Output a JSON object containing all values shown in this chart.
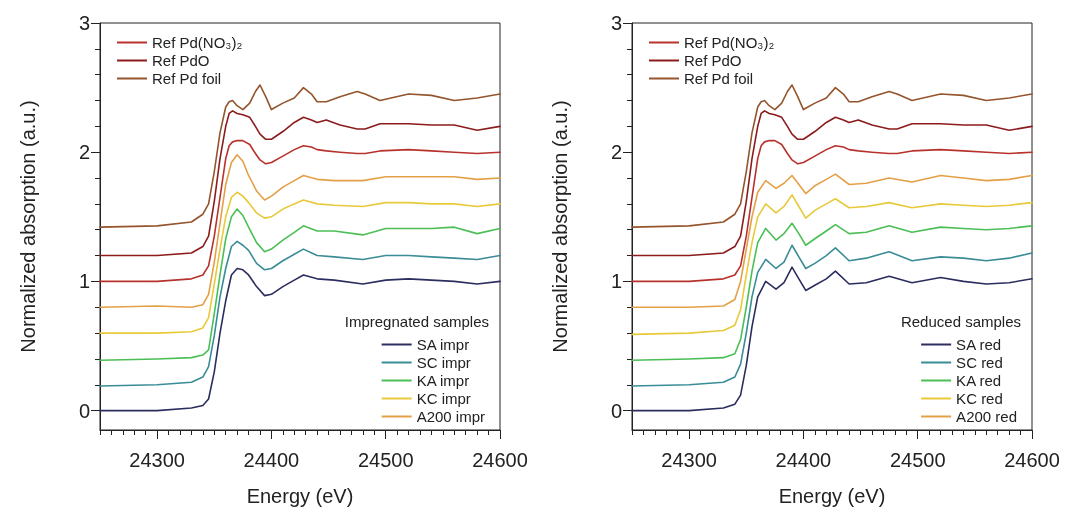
{
  "chart_data": [
    {
      "type": "line",
      "xlabel": "Energy (eV)",
      "ylabel": "Normalized absorption (a.u.)",
      "legend_title": "Impregnated samples",
      "legend": "bottom right",
      "grid": false,
      "marker": "none",
      "line_style": "solid",
      "xlim": [
        24250,
        24600
      ],
      "ylim": [
        -0.15,
        3
      ],
      "xticks": [
        {
          "value": 24250,
          "label": null
        },
        {
          "value": 24260,
          "label": null
        },
        {
          "value": 24270,
          "label": null
        },
        {
          "value": 24280,
          "label": null
        },
        {
          "value": 24290,
          "label": null
        },
        24300,
        {
          "value": 24310,
          "label": null
        },
        {
          "value": 24320,
          "label": null
        },
        {
          "value": 24330,
          "label": null
        },
        {
          "value": 24340,
          "label": null
        },
        {
          "value": 24350,
          "label": null
        },
        {
          "value": 24360,
          "label": null
        },
        {
          "value": 24370,
          "label": null
        },
        {
          "value": 24380,
          "label": null
        },
        {
          "value": 24390,
          "label": null
        },
        24400,
        {
          "value": 24410,
          "label": null
        },
        {
          "value": 24420,
          "label": null
        },
        {
          "value": 24430,
          "label": null
        },
        {
          "value": 24440,
          "label": null
        },
        {
          "value": 24450,
          "label": null
        },
        {
          "value": 24460,
          "label": null
        },
        {
          "value": 24470,
          "label": null
        },
        {
          "value": 24480,
          "label": null
        },
        {
          "value": 24490,
          "label": null
        },
        24500,
        {
          "value": 24510,
          "label": null
        },
        {
          "value": 24520,
          "label": null
        },
        {
          "value": 24530,
          "label": null
        },
        {
          "value": 24540,
          "label": null
        },
        {
          "value": 24550,
          "label": null
        },
        {
          "value": 24560,
          "label": null
        },
        {
          "value": 24570,
          "label": null
        },
        {
          "value": 24580,
          "label": null
        },
        {
          "value": 24590,
          "label": null
        },
        24600
      ],
      "yticks": [
        0,
        {
          "value": 0.2,
          "label": null
        },
        {
          "value": 0.4,
          "label": null
        },
        {
          "value": 0.6,
          "label": null
        },
        {
          "value": 0.8,
          "label": null
        },
        1,
        {
          "value": 1.2,
          "label": null
        },
        {
          "value": 1.4,
          "label": null
        },
        {
          "value": 1.6,
          "label": null
        },
        {
          "value": 1.8,
          "label": null
        },
        2,
        {
          "value": 2.2,
          "label": null
        },
        {
          "value": 2.4,
          "label": null
        },
        {
          "value": 2.6,
          "label": null
        },
        {
          "value": 2.8,
          "label": null
        },
        3
      ],
      "series": [
        {
          "name": "SA impr",
          "color": "#2b2d5e",
          "x": [
            24250,
            24300,
            24330,
            24340,
            24345,
            24350,
            24355,
            24360,
            24365,
            24370,
            24375,
            24380,
            24387,
            24394,
            24400,
            24410,
            24420,
            24428,
            24440,
            24455,
            24480,
            24500,
            24520,
            24540,
            24560,
            24580,
            24600
          ],
          "values": [
            0,
            0,
            0.02,
            0.04,
            0.09,
            0.3,
            0.6,
            0.85,
            1.05,
            1.1,
            1.09,
            1.05,
            0.96,
            0.89,
            0.9,
            0.96,
            1.01,
            1.05,
            1.02,
            1.01,
            0.98,
            1.01,
            1.02,
            1.01,
            1.0,
            0.98,
            1.0
          ]
        },
        {
          "name": "SC impr",
          "color": "#3a8c96",
          "x": [
            24250,
            24300,
            24330,
            24340,
            24345,
            24350,
            24355,
            24360,
            24365,
            24370,
            24375,
            24380,
            24387,
            24394,
            24400,
            24410,
            24420,
            24428,
            24440,
            24455,
            24480,
            24500,
            24520,
            24540,
            24560,
            24580,
            24600
          ],
          "values": [
            0.19,
            0.2,
            0.22,
            0.26,
            0.34,
            0.58,
            0.88,
            1.1,
            1.27,
            1.31,
            1.28,
            1.24,
            1.14,
            1.09,
            1.1,
            1.16,
            1.21,
            1.25,
            1.2,
            1.19,
            1.17,
            1.2,
            1.2,
            1.19,
            1.18,
            1.17,
            1.2
          ]
        },
        {
          "name": "KA impr",
          "color": "#4bbf55",
          "x": [
            24250,
            24300,
            24330,
            24340,
            24345,
            24350,
            24355,
            24360,
            24365,
            24370,
            24375,
            24380,
            24387,
            24394,
            24400,
            24410,
            24420,
            24428,
            24440,
            24455,
            24480,
            24500,
            24520,
            24540,
            24560,
            24580,
            24600
          ],
          "values": [
            0.39,
            0.4,
            0.41,
            0.43,
            0.47,
            0.75,
            1.05,
            1.33,
            1.5,
            1.56,
            1.51,
            1.42,
            1.3,
            1.23,
            1.25,
            1.32,
            1.38,
            1.43,
            1.39,
            1.39,
            1.36,
            1.41,
            1.41,
            1.41,
            1.42,
            1.37,
            1.41
          ]
        },
        {
          "name": "KC impr",
          "color": "#e8c93a",
          "x": [
            24250,
            24300,
            24330,
            24340,
            24345,
            24350,
            24355,
            24360,
            24365,
            24370,
            24375,
            24380,
            24387,
            24394,
            24400,
            24410,
            24420,
            24428,
            24440,
            24455,
            24480,
            24500,
            24520,
            24540,
            24560,
            24580,
            24600
          ],
          "values": [
            0.6,
            0.6,
            0.61,
            0.64,
            0.72,
            0.98,
            1.25,
            1.5,
            1.65,
            1.69,
            1.66,
            1.61,
            1.53,
            1.49,
            1.5,
            1.56,
            1.6,
            1.63,
            1.6,
            1.59,
            1.58,
            1.61,
            1.61,
            1.6,
            1.6,
            1.58,
            1.6
          ]
        },
        {
          "name": "A200 impr",
          "color": "#e3a046",
          "x": [
            24250,
            24300,
            24330,
            24340,
            24345,
            24350,
            24355,
            24360,
            24365,
            24370,
            24375,
            24380,
            24387,
            24394,
            24400,
            24410,
            24420,
            24428,
            24440,
            24455,
            24480,
            24500,
            24520,
            24540,
            24560,
            24580,
            24600
          ],
          "values": [
            0.8,
            0.81,
            0.8,
            0.82,
            0.9,
            1.15,
            1.45,
            1.75,
            1.92,
            1.98,
            1.93,
            1.82,
            1.7,
            1.63,
            1.66,
            1.73,
            1.78,
            1.82,
            1.79,
            1.78,
            1.78,
            1.81,
            1.81,
            1.81,
            1.81,
            1.79,
            1.8
          ]
        },
        {
          "name": "Ref Pd(NO₃)₂",
          "color": "#b8322d",
          "x": [
            24250,
            24300,
            24330,
            24340,
            24345,
            24350,
            24355,
            24360,
            24363,
            24366,
            24370,
            24375,
            24381,
            24386,
            24390,
            24395,
            24400,
            24410,
            24420,
            24428,
            24435,
            24440,
            24448,
            24460,
            24475,
            24482,
            24495,
            24520,
            24540,
            24560,
            24580,
            24600
          ],
          "values": [
            1.0,
            1.0,
            1.02,
            1.05,
            1.12,
            1.35,
            1.65,
            1.95,
            2.05,
            2.08,
            2.09,
            2.09,
            2.06,
            1.99,
            1.94,
            1.91,
            1.92,
            1.97,
            2.02,
            2.05,
            2.04,
            2.02,
            2.01,
            2.0,
            1.99,
            1.99,
            2.01,
            2.02,
            2.01,
            2.0,
            1.99,
            2.0
          ]
        },
        {
          "name": "Ref PdO",
          "color": "#8c1c1c",
          "x": [
            24250,
            24300,
            24330,
            24340,
            24345,
            24350,
            24355,
            24360,
            24363,
            24366,
            24370,
            24375,
            24381,
            24386,
            24390,
            24395,
            24400,
            24410,
            24420,
            24428,
            24435,
            24440,
            24448,
            24460,
            24475,
            24482,
            24495,
            24520,
            24540,
            24560,
            24580,
            24600
          ],
          "values": [
            1.2,
            1.2,
            1.22,
            1.27,
            1.35,
            1.62,
            1.95,
            2.2,
            2.3,
            2.32,
            2.3,
            2.29,
            2.27,
            2.2,
            2.14,
            2.1,
            2.1,
            2.16,
            2.23,
            2.27,
            2.25,
            2.23,
            2.25,
            2.21,
            2.18,
            2.18,
            2.22,
            2.22,
            2.21,
            2.21,
            2.17,
            2.2
          ]
        },
        {
          "name": "Ref Pd foil",
          "color": "#94542c",
          "x": [
            24250,
            24300,
            24330,
            24340,
            24345,
            24350,
            24355,
            24360,
            24363,
            24366,
            24370,
            24375,
            24381,
            24386,
            24390,
            24395,
            24400,
            24410,
            24420,
            24428,
            24435,
            24440,
            24448,
            24460,
            24475,
            24482,
            24495,
            24520,
            24540,
            24560,
            24580,
            24600
          ],
          "values": [
            1.42,
            1.43,
            1.46,
            1.52,
            1.6,
            1.85,
            2.15,
            2.35,
            2.39,
            2.4,
            2.36,
            2.33,
            2.38,
            2.47,
            2.52,
            2.43,
            2.33,
            2.38,
            2.42,
            2.5,
            2.45,
            2.39,
            2.39,
            2.43,
            2.47,
            2.45,
            2.4,
            2.45,
            2.44,
            2.4,
            2.42,
            2.45
          ]
        }
      ]
    },
    {
      "type": "line",
      "xlabel": "Energy (eV)",
      "ylabel": "Normalized absorption (a.u.)",
      "legend_title": "Reduced samples",
      "legend": "bottom right",
      "grid": false,
      "marker": "none",
      "line_style": "solid",
      "xlim": [
        24250,
        24600
      ],
      "ylim": [
        -0.15,
        3
      ],
      "xticks": [
        {
          "value": 24250,
          "label": null
        },
        {
          "value": 24260,
          "label": null
        },
        {
          "value": 24270,
          "label": null
        },
        {
          "value": 24280,
          "label": null
        },
        {
          "value": 24290,
          "label": null
        },
        24300,
        {
          "value": 24310,
          "label": null
        },
        {
          "value": 24320,
          "label": null
        },
        {
          "value": 24330,
          "label": null
        },
        {
          "value": 24340,
          "label": null
        },
        {
          "value": 24350,
          "label": null
        },
        {
          "value": 24360,
          "label": null
        },
        {
          "value": 24370,
          "label": null
        },
        {
          "value": 24380,
          "label": null
        },
        {
          "value": 24390,
          "label": null
        },
        24400,
        {
          "value": 24410,
          "label": null
        },
        {
          "value": 24420,
          "label": null
        },
        {
          "value": 24430,
          "label": null
        },
        {
          "value": 24440,
          "label": null
        },
        {
          "value": 24450,
          "label": null
        },
        {
          "value": 24460,
          "label": null
        },
        {
          "value": 24470,
          "label": null
        },
        {
          "value": 24480,
          "label": null
        },
        {
          "value": 24490,
          "label": null
        },
        24500,
        {
          "value": 24510,
          "label": null
        },
        {
          "value": 24520,
          "label": null
        },
        {
          "value": 24530,
          "label": null
        },
        {
          "value": 24540,
          "label": null
        },
        {
          "value": 24550,
          "label": null
        },
        {
          "value": 24560,
          "label": null
        },
        {
          "value": 24570,
          "label": null
        },
        {
          "value": 24580,
          "label": null
        },
        {
          "value": 24590,
          "label": null
        },
        24600
      ],
      "yticks": [
        0,
        {
          "value": 0.2,
          "label": null
        },
        {
          "value": 0.4,
          "label": null
        },
        {
          "value": 0.6,
          "label": null
        },
        {
          "value": 0.8,
          "label": null
        },
        1,
        {
          "value": 1.2,
          "label": null
        },
        {
          "value": 1.4,
          "label": null
        },
        {
          "value": 1.6,
          "label": null
        },
        {
          "value": 1.8,
          "label": null
        },
        2,
        {
          "value": 2.2,
          "label": null
        },
        {
          "value": 2.4,
          "label": null
        },
        {
          "value": 2.6,
          "label": null
        },
        {
          "value": 2.8,
          "label": null
        },
        3
      ],
      "series": [
        {
          "name": "SA red",
          "color": "#2b2d5e",
          "x": [
            24250,
            24300,
            24330,
            24340,
            24345,
            24350,
            24355,
            24360,
            24367,
            24376,
            24383,
            24390,
            24396,
            24402,
            24410,
            24420,
            24428,
            24440,
            24455,
            24475,
            24495,
            24520,
            24540,
            24560,
            24580,
            24600
          ],
          "values": [
            0,
            0,
            0.02,
            0.05,
            0.12,
            0.35,
            0.65,
            0.88,
            1.0,
            0.94,
            0.99,
            1.11,
            1.02,
            0.93,
            0.97,
            1.02,
            1.08,
            0.98,
            0.99,
            1.04,
            0.99,
            1.03,
            1.0,
            0.98,
            0.99,
            1.02
          ]
        },
        {
          "name": "SC red",
          "color": "#3a8c96",
          "x": [
            24250,
            24300,
            24330,
            24340,
            24345,
            24350,
            24355,
            24360,
            24367,
            24376,
            24383,
            24390,
            24396,
            24402,
            24410,
            24420,
            24428,
            24440,
            24455,
            24475,
            24495,
            24520,
            24540,
            24560,
            24580,
            24600
          ],
          "values": [
            0.19,
            0.2,
            0.22,
            0.26,
            0.36,
            0.6,
            0.88,
            1.07,
            1.17,
            1.1,
            1.15,
            1.28,
            1.19,
            1.1,
            1.14,
            1.2,
            1.26,
            1.16,
            1.18,
            1.23,
            1.16,
            1.19,
            1.18,
            1.16,
            1.18,
            1.22
          ]
        },
        {
          "name": "KA red",
          "color": "#4bbf55",
          "x": [
            24250,
            24300,
            24330,
            24340,
            24345,
            24350,
            24355,
            24360,
            24367,
            24376,
            24383,
            24390,
            24396,
            24402,
            24410,
            24420,
            24428,
            24440,
            24455,
            24475,
            24495,
            24520,
            24540,
            24560,
            24580,
            24600
          ],
          "values": [
            0.39,
            0.4,
            0.41,
            0.44,
            0.55,
            0.8,
            1.08,
            1.3,
            1.41,
            1.32,
            1.37,
            1.45,
            1.37,
            1.28,
            1.33,
            1.39,
            1.44,
            1.37,
            1.38,
            1.43,
            1.38,
            1.42,
            1.41,
            1.4,
            1.41,
            1.43
          ]
        },
        {
          "name": "KC red",
          "color": "#e8c93a",
          "x": [
            24250,
            24300,
            24330,
            24340,
            24345,
            24350,
            24355,
            24360,
            24367,
            24376,
            24383,
            24390,
            24396,
            24402,
            24410,
            24420,
            24428,
            24440,
            24455,
            24475,
            24495,
            24520,
            24540,
            24560,
            24580,
            24600
          ],
          "values": [
            0.59,
            0.6,
            0.62,
            0.66,
            0.78,
            1.05,
            1.3,
            1.5,
            1.6,
            1.53,
            1.58,
            1.67,
            1.58,
            1.49,
            1.55,
            1.6,
            1.64,
            1.57,
            1.58,
            1.61,
            1.57,
            1.6,
            1.59,
            1.58,
            1.59,
            1.61
          ]
        },
        {
          "name": "A200 red",
          "color": "#e3a046",
          "x": [
            24250,
            24300,
            24330,
            24340,
            24345,
            24350,
            24355,
            24360,
            24367,
            24376,
            24383,
            24390,
            24396,
            24402,
            24410,
            24420,
            24428,
            24440,
            24455,
            24475,
            24495,
            24520,
            24540,
            24560,
            24580,
            24600
          ],
          "values": [
            0.8,
            0.8,
            0.81,
            0.86,
            1.0,
            1.25,
            1.5,
            1.69,
            1.78,
            1.72,
            1.76,
            1.82,
            1.75,
            1.68,
            1.74,
            1.79,
            1.83,
            1.75,
            1.76,
            1.8,
            1.77,
            1.82,
            1.8,
            1.78,
            1.79,
            1.82
          ]
        },
        {
          "name": "Ref Pd(NO₃)₂",
          "color": "#b8322d",
          "x": [
            24250,
            24300,
            24330,
            24340,
            24345,
            24350,
            24355,
            24360,
            24363,
            24366,
            24370,
            24375,
            24381,
            24386,
            24390,
            24395,
            24400,
            24410,
            24420,
            24428,
            24435,
            24440,
            24448,
            24460,
            24475,
            24482,
            24495,
            24520,
            24540,
            24560,
            24580,
            24600
          ],
          "values": [
            1.0,
            1.0,
            1.02,
            1.05,
            1.12,
            1.35,
            1.65,
            1.95,
            2.05,
            2.08,
            2.09,
            2.09,
            2.06,
            1.99,
            1.94,
            1.91,
            1.92,
            1.97,
            2.02,
            2.05,
            2.04,
            2.02,
            2.01,
            2.0,
            1.99,
            1.99,
            2.01,
            2.02,
            2.01,
            2.0,
            1.99,
            2.0
          ]
        },
        {
          "name": "Ref PdO",
          "color": "#8c1c1c",
          "x": [
            24250,
            24300,
            24330,
            24340,
            24345,
            24350,
            24355,
            24360,
            24363,
            24366,
            24370,
            24375,
            24381,
            24386,
            24390,
            24395,
            24400,
            24410,
            24420,
            24428,
            24435,
            24440,
            24448,
            24460,
            24475,
            24482,
            24495,
            24520,
            24540,
            24560,
            24580,
            24600
          ],
          "values": [
            1.2,
            1.2,
            1.22,
            1.27,
            1.35,
            1.62,
            1.95,
            2.2,
            2.3,
            2.32,
            2.3,
            2.29,
            2.27,
            2.2,
            2.14,
            2.1,
            2.1,
            2.16,
            2.23,
            2.27,
            2.25,
            2.23,
            2.25,
            2.21,
            2.18,
            2.18,
            2.22,
            2.22,
            2.21,
            2.21,
            2.17,
            2.2
          ]
        },
        {
          "name": "Ref Pd foil",
          "color": "#94542c",
          "x": [
            24250,
            24300,
            24330,
            24340,
            24345,
            24350,
            24355,
            24360,
            24363,
            24366,
            24370,
            24375,
            24381,
            24386,
            24390,
            24395,
            24400,
            24410,
            24420,
            24428,
            24435,
            24440,
            24448,
            24460,
            24475,
            24482,
            24495,
            24520,
            24540,
            24560,
            24580,
            24600
          ],
          "values": [
            1.42,
            1.43,
            1.46,
            1.52,
            1.6,
            1.85,
            2.15,
            2.35,
            2.39,
            2.4,
            2.36,
            2.33,
            2.38,
            2.47,
            2.52,
            2.43,
            2.33,
            2.38,
            2.42,
            2.5,
            2.45,
            2.39,
            2.39,
            2.43,
            2.47,
            2.45,
            2.4,
            2.45,
            2.44,
            2.4,
            2.42,
            2.45
          ]
        }
      ]
    }
  ]
}
